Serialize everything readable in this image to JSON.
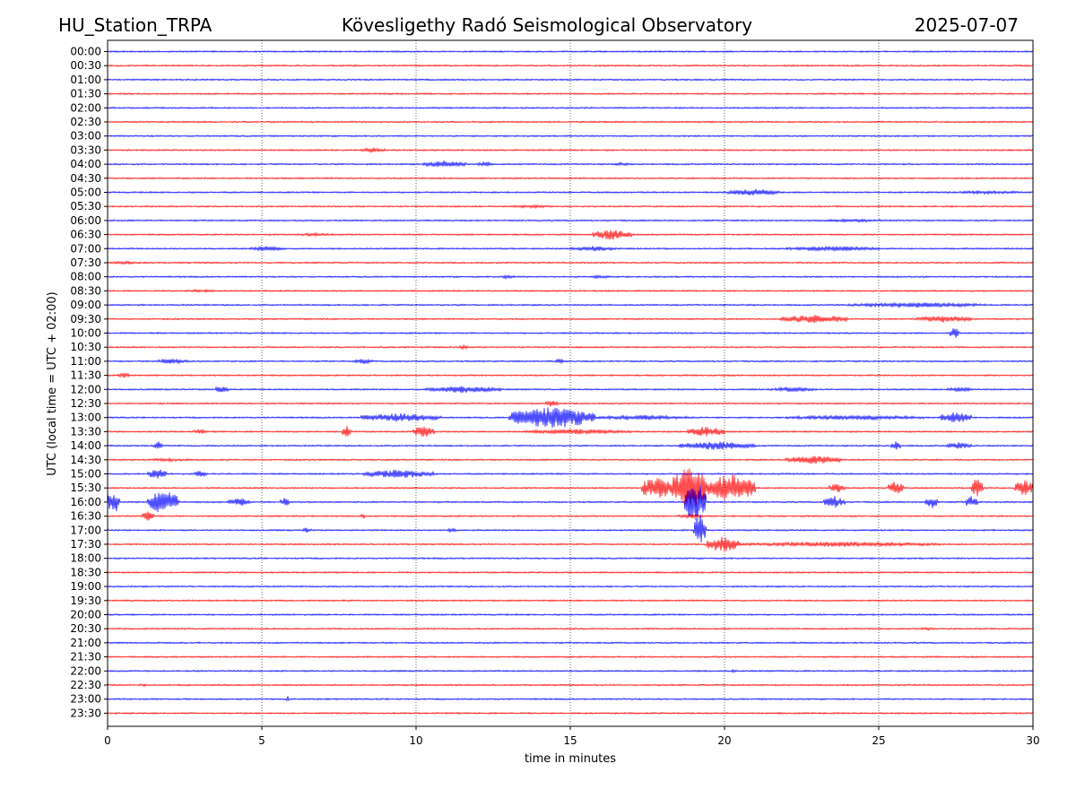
{
  "chart_data": {
    "type": "line",
    "title_left": "HU_Station_TRPA",
    "title": "Kövesligethy Radó Seismological Observatory",
    "title_right": "2025-07-07",
    "xlabel": "time in minutes",
    "ylabel": "UTC (local time = UTC + 02:00)",
    "xlim": [
      0,
      30
    ],
    "x_ticks": [
      0,
      5,
      10,
      15,
      20,
      25,
      30
    ],
    "x_grid": "dotted vertical lines at 5-minute intervals",
    "colors": {
      "even_rows": "#0000ff",
      "odd_rows": "#ff0000",
      "grid": "#000000"
    },
    "rows": [
      {
        "label": "00:00",
        "events": []
      },
      {
        "label": "00:30",
        "events": []
      },
      {
        "label": "01:00",
        "events": []
      },
      {
        "label": "01:30",
        "events": []
      },
      {
        "label": "02:00",
        "events": []
      },
      {
        "label": "02:30",
        "events": []
      },
      {
        "label": "03:00",
        "events": []
      },
      {
        "label": "03:30",
        "events": [
          {
            "start": 8.2,
            "end": 9.0,
            "amp": 3
          }
        ]
      },
      {
        "label": "04:00",
        "events": [
          {
            "start": 10.2,
            "end": 11.6,
            "amp": 4
          },
          {
            "start": 12.0,
            "end": 12.5,
            "amp": 3
          },
          {
            "start": 16.3,
            "end": 17.0,
            "amp": 2
          }
        ]
      },
      {
        "label": "04:30",
        "events": []
      },
      {
        "label": "05:00",
        "events": [
          {
            "start": 20.1,
            "end": 21.8,
            "amp": 4
          },
          {
            "start": 27.0,
            "end": 30.0,
            "amp": 2
          }
        ]
      },
      {
        "label": "05:30",
        "events": [
          {
            "start": 13.0,
            "end": 14.5,
            "amp": 2
          }
        ]
      },
      {
        "label": "06:00",
        "events": [
          {
            "start": 23.0,
            "end": 25.5,
            "amp": 2
          }
        ]
      },
      {
        "label": "06:30",
        "events": [
          {
            "start": 6.0,
            "end": 7.5,
            "amp": 2
          },
          {
            "start": 15.7,
            "end": 17.0,
            "amp": 6
          }
        ]
      },
      {
        "label": "07:00",
        "events": [
          {
            "start": 4.6,
            "end": 5.8,
            "amp": 3
          },
          {
            "start": 15.0,
            "end": 16.5,
            "amp": 3
          },
          {
            "start": 22.0,
            "end": 25.0,
            "amp": 3
          }
        ]
      },
      {
        "label": "07:30",
        "events": [
          {
            "start": 0.0,
            "end": 1.2,
            "amp": 2
          }
        ]
      },
      {
        "label": "08:00",
        "events": [
          {
            "start": 12.8,
            "end": 13.2,
            "amp": 3
          },
          {
            "start": 15.5,
            "end": 16.5,
            "amp": 2
          }
        ]
      },
      {
        "label": "08:30",
        "events": [
          {
            "start": 2.5,
            "end": 3.5,
            "amp": 2
          }
        ]
      },
      {
        "label": "09:00",
        "events": [
          {
            "start": 24.0,
            "end": 28.5,
            "amp": 3
          }
        ]
      },
      {
        "label": "09:30",
        "events": [
          {
            "start": 21.8,
            "end": 24.0,
            "amp": 5
          },
          {
            "start": 26.2,
            "end": 28.0,
            "amp": 4
          }
        ]
      },
      {
        "label": "10:00",
        "events": [
          {
            "start": 27.3,
            "end": 27.6,
            "amp": 7
          }
        ]
      },
      {
        "label": "10:30",
        "events": [
          {
            "start": 11.4,
            "end": 11.7,
            "amp": 3
          }
        ]
      },
      {
        "label": "11:00",
        "events": [
          {
            "start": 1.5,
            "end": 2.6,
            "amp": 3
          },
          {
            "start": 8.0,
            "end": 8.6,
            "amp": 3
          },
          {
            "start": 14.5,
            "end": 14.8,
            "amp": 3
          }
        ]
      },
      {
        "label": "11:30",
        "events": [
          {
            "start": 0.3,
            "end": 0.8,
            "amp": 3
          }
        ]
      },
      {
        "label": "12:00",
        "events": [
          {
            "start": 3.5,
            "end": 3.9,
            "amp": 5
          },
          {
            "start": 10.3,
            "end": 12.8,
            "amp": 4
          },
          {
            "start": 21.5,
            "end": 23.0,
            "amp": 3
          },
          {
            "start": 27.2,
            "end": 28.0,
            "amp": 3
          }
        ]
      },
      {
        "label": "12:30",
        "events": [
          {
            "start": 14.2,
            "end": 14.6,
            "amp": 5
          }
        ]
      },
      {
        "label": "13:00",
        "events": [
          {
            "start": 8.2,
            "end": 10.8,
            "amp": 5
          },
          {
            "start": 13.0,
            "end": 15.8,
            "amp": 13
          },
          {
            "start": 15.8,
            "end": 19.0,
            "amp": 3
          },
          {
            "start": 22.0,
            "end": 26.5,
            "amp": 3
          },
          {
            "start": 27.0,
            "end": 28.0,
            "amp": 7
          }
        ]
      },
      {
        "label": "13:30",
        "events": [
          {
            "start": 2.8,
            "end": 3.2,
            "amp": 3
          },
          {
            "start": 7.6,
            "end": 7.9,
            "amp": 7
          },
          {
            "start": 9.9,
            "end": 10.6,
            "amp": 7
          },
          {
            "start": 13.5,
            "end": 17.0,
            "amp": 3
          },
          {
            "start": 18.8,
            "end": 20.0,
            "amp": 6
          }
        ]
      },
      {
        "label": "14:00",
        "events": [
          {
            "start": 1.5,
            "end": 1.8,
            "amp": 5
          },
          {
            "start": 18.5,
            "end": 21.0,
            "amp": 5
          },
          {
            "start": 25.4,
            "end": 25.7,
            "amp": 6
          },
          {
            "start": 27.2,
            "end": 28.0,
            "amp": 4
          }
        ]
      },
      {
        "label": "14:30",
        "events": [
          {
            "start": 1.2,
            "end": 2.8,
            "amp": 2
          },
          {
            "start": 22.0,
            "end": 23.8,
            "amp": 5
          }
        ]
      },
      {
        "label": "15:00",
        "events": [
          {
            "start": 1.3,
            "end": 1.9,
            "amp": 6
          },
          {
            "start": 2.8,
            "end": 3.2,
            "amp": 4
          },
          {
            "start": 8.3,
            "end": 10.6,
            "amp": 5
          }
        ]
      },
      {
        "label": "15:30",
        "events": [
          {
            "start": 17.3,
            "end": 18.3,
            "amp": 14
          },
          {
            "start": 18.3,
            "end": 19.4,
            "amp": 28
          },
          {
            "start": 19.4,
            "end": 21.0,
            "amp": 16
          },
          {
            "start": 23.4,
            "end": 23.9,
            "amp": 6
          },
          {
            "start": 25.3,
            "end": 25.8,
            "amp": 8
          },
          {
            "start": 28.0,
            "end": 28.4,
            "amp": 12
          },
          {
            "start": 29.4,
            "end": 30.0,
            "amp": 10
          }
        ]
      },
      {
        "label": "16:00",
        "events": [
          {
            "start": 0.0,
            "end": 0.4,
            "amp": 14
          },
          {
            "start": 1.3,
            "end": 2.3,
            "amp": 14
          },
          {
            "start": 3.9,
            "end": 4.6,
            "amp": 5
          },
          {
            "start": 5.6,
            "end": 5.9,
            "amp": 5
          },
          {
            "start": 18.7,
            "end": 19.4,
            "amp": 26
          },
          {
            "start": 23.2,
            "end": 23.9,
            "amp": 7
          },
          {
            "start": 26.5,
            "end": 26.9,
            "amp": 8
          },
          {
            "start": 27.8,
            "end": 28.2,
            "amp": 7
          }
        ]
      },
      {
        "label": "16:30",
        "events": [
          {
            "start": 1.1,
            "end": 1.5,
            "amp": 6
          },
          {
            "start": 8.2,
            "end": 8.4,
            "amp": 3
          },
          {
            "start": 18.5,
            "end": 19.3,
            "amp": 3
          }
        ]
      },
      {
        "label": "17:00",
        "events": [
          {
            "start": 6.3,
            "end": 6.6,
            "amp": 3
          },
          {
            "start": 11.0,
            "end": 11.3,
            "amp": 3
          },
          {
            "start": 19.0,
            "end": 19.4,
            "amp": 20
          }
        ]
      },
      {
        "label": "17:30",
        "events": [
          {
            "start": 19.4,
            "end": 20.5,
            "amp": 9
          },
          {
            "start": 20.5,
            "end": 27.0,
            "amp": 3
          }
        ]
      },
      {
        "label": "18:00",
        "events": []
      },
      {
        "label": "18:30",
        "events": []
      },
      {
        "label": "19:00",
        "events": []
      },
      {
        "label": "19:30",
        "events": []
      },
      {
        "label": "20:00",
        "events": []
      },
      {
        "label": "20:30",
        "events": [
          {
            "start": 26.3,
            "end": 26.8,
            "amp": 2
          }
        ]
      },
      {
        "label": "21:00",
        "events": []
      },
      {
        "label": "21:30",
        "events": []
      },
      {
        "label": "22:00",
        "events": [
          {
            "start": 20.2,
            "end": 20.4,
            "amp": 2
          }
        ]
      },
      {
        "label": "22:30",
        "events": [
          {
            "start": 1.0,
            "end": 1.3,
            "amp": 2
          }
        ]
      },
      {
        "label": "23:00",
        "events": [
          {
            "start": 5.8,
            "end": 5.9,
            "amp": 4
          }
        ]
      },
      {
        "label": "23:30",
        "events": []
      }
    ]
  }
}
